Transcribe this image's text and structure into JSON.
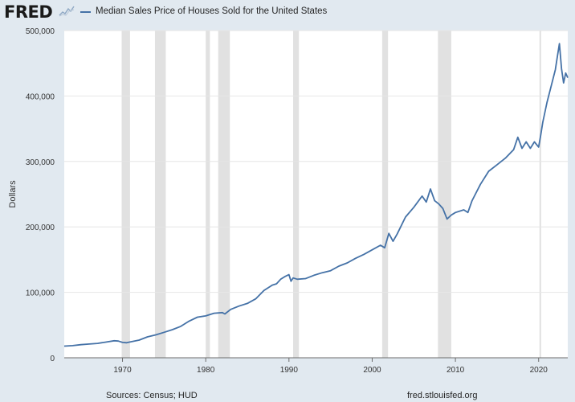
{
  "header": {
    "logo_text": "FRED",
    "legend_label": "Median Sales Price of Houses Sold for the United States"
  },
  "colors": {
    "series": "#4572a7",
    "plot_background": "#ffffff",
    "page_background": "#e1e9f0",
    "recession": "#e1e1e1",
    "gridline": "#e6e6e6"
  },
  "footer": {
    "sources": "Sources: Census; HUD",
    "site": "fred.stlouisfed.org"
  },
  "chart_data": {
    "type": "line",
    "title": "",
    "xlabel": "",
    "ylabel": "Dollars",
    "xlim": [
      1963,
      2023.5
    ],
    "ylim": [
      0,
      500000
    ],
    "x_ticks": [
      1970,
      1980,
      1990,
      2000,
      2010,
      2020
    ],
    "y_ticks": [
      0,
      100000,
      200000,
      300000,
      400000,
      500000
    ],
    "y_tick_labels": [
      "0",
      "100,000",
      "200,000",
      "300,000",
      "400,000",
      "500,000"
    ],
    "grid": "horizontal",
    "legend_position": "top",
    "recessions": [
      [
        1969.9,
        1970.9
      ],
      [
        1973.9,
        1975.2
      ],
      [
        1980.0,
        1980.5
      ],
      [
        1981.5,
        1982.9
      ],
      [
        1990.5,
        1991.2
      ],
      [
        2001.2,
        2001.9
      ],
      [
        2007.9,
        2009.5
      ],
      [
        2020.1,
        2020.3
      ]
    ],
    "series": [
      {
        "name": "Median Sales Price of Houses Sold for the United States",
        "x": [
          1963.0,
          1964.0,
          1965.0,
          1966.0,
          1967.0,
          1968.0,
          1969.0,
          1969.5,
          1970.0,
          1970.5,
          1971.0,
          1972.0,
          1973.0,
          1974.0,
          1975.0,
          1976.0,
          1977.0,
          1978.0,
          1979.0,
          1980.0,
          1981.0,
          1982.0,
          1982.3,
          1983.0,
          1984.0,
          1985.0,
          1986.0,
          1987.0,
          1988.0,
          1988.5,
          1989.0,
          1989.5,
          1990.0,
          1990.25,
          1990.5,
          1991.0,
          1992.0,
          1993.0,
          1994.0,
          1995.0,
          1996.0,
          1997.0,
          1998.0,
          1999.0,
          2000.0,
          2001.0,
          2001.5,
          2002.0,
          2002.5,
          2003.0,
          2004.0,
          2005.0,
          2006.0,
          2006.5,
          2007.0,
          2007.5,
          2008.0,
          2008.5,
          2009.0,
          2009.5,
          2010.0,
          2011.0,
          2011.5,
          2012.0,
          2013.0,
          2014.0,
          2015.0,
          2016.0,
          2017.0,
          2017.5,
          2018.0,
          2018.5,
          2019.0,
          2019.5,
          2020.0,
          2020.25,
          2020.5,
          2021.0,
          2021.5,
          2022.0,
          2022.25,
          2022.5,
          2022.75,
          2023.0,
          2023.25,
          2023.5
        ],
        "values": [
          17800,
          18500,
          20000,
          21000,
          22000,
          24000,
          26000,
          25500,
          23500,
          23000,
          24500,
          27000,
          32000,
          35000,
          39000,
          43000,
          48000,
          56000,
          62000,
          64000,
          68000,
          69000,
          67000,
          74000,
          79000,
          83000,
          90000,
          103000,
          111000,
          113000,
          120000,
          124000,
          127000,
          117000,
          122000,
          120000,
          121000,
          126000,
          130000,
          133000,
          140000,
          145000,
          152000,
          158000,
          165000,
          172000,
          168000,
          190000,
          178000,
          189000,
          215000,
          230000,
          247000,
          238000,
          258000,
          240000,
          235000,
          228000,
          212000,
          218000,
          222000,
          226000,
          222000,
          240000,
          265000,
          285000,
          295000,
          305000,
          318000,
          337000,
          320000,
          330000,
          320000,
          330000,
          322000,
          340000,
          360000,
          390000,
          415000,
          440000,
          460000,
          480000,
          442000,
          420000,
          435000,
          428000
        ]
      }
    ]
  }
}
